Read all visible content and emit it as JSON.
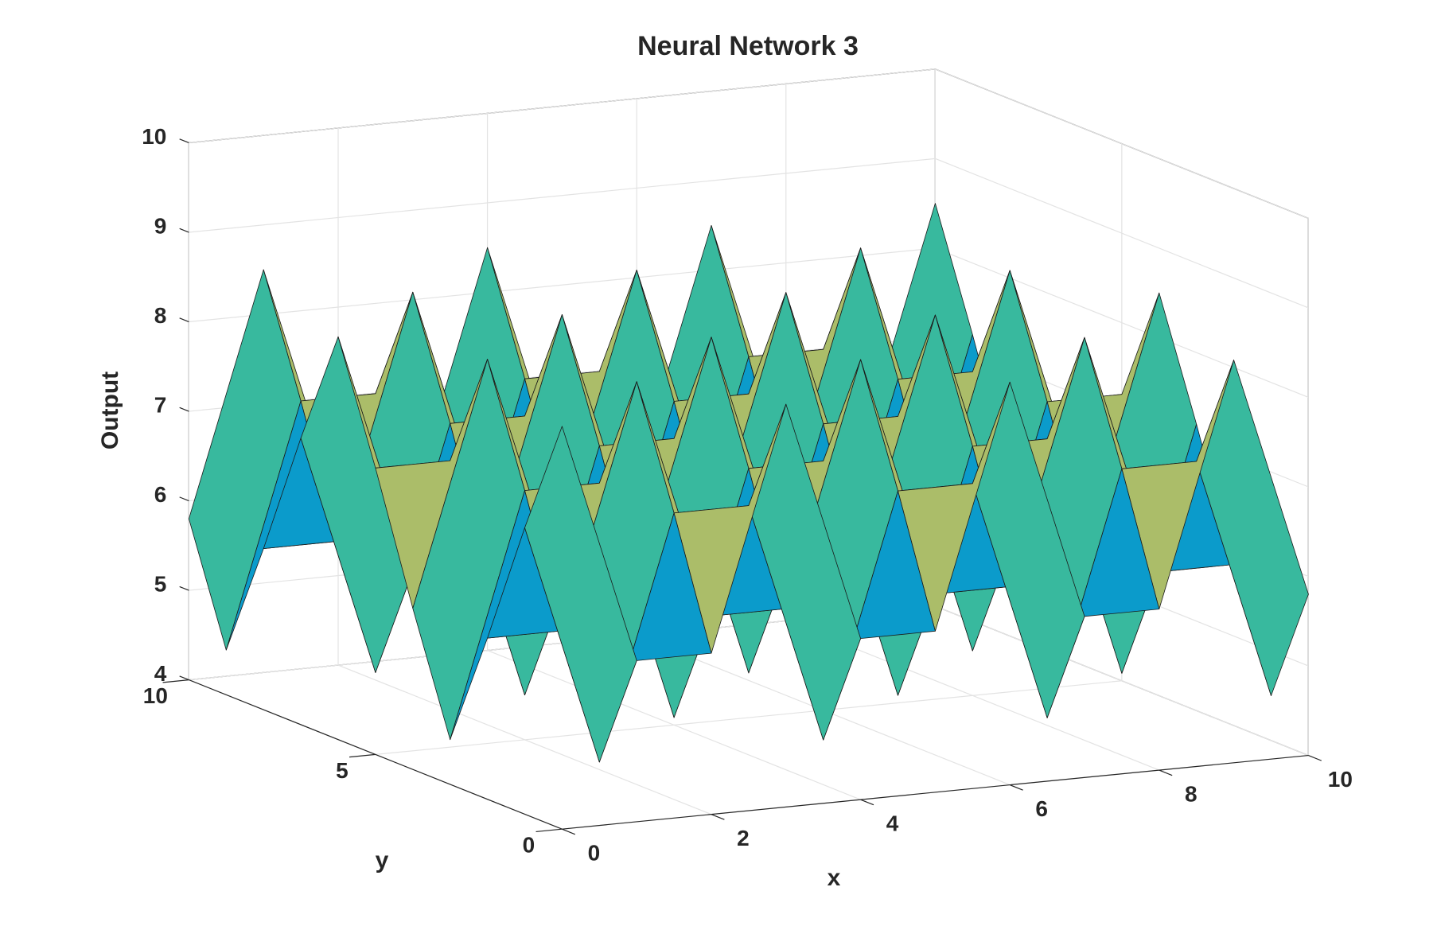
{
  "chart_data": {
    "type": "surface",
    "title": "Neural Network 3",
    "x_label": "x",
    "y_label": "y",
    "z_label": "Output",
    "x": [
      0,
      1,
      2,
      3,
      4,
      5,
      6,
      7,
      8,
      9,
      10
    ],
    "y": [
      0,
      1,
      2,
      3,
      4,
      5,
      6,
      7,
      8,
      9,
      10
    ],
    "z": [
      [
        8.5,
        5.8,
        5.8,
        8.5,
        5.8,
        5.8,
        8.5,
        5.8,
        5.8,
        8.5,
        5.8
      ],
      [
        7.2,
        4.5,
        7.2,
        7.2,
        4.5,
        7.2,
        7.2,
        4.5,
        7.2,
        7.2,
        4.5
      ],
      [
        5.8,
        5.8,
        8.5,
        5.8,
        5.8,
        8.5,
        5.8,
        5.8,
        8.5,
        5.8,
        5.8
      ],
      [
        4.5,
        7.2,
        7.2,
        4.5,
        7.2,
        7.2,
        4.5,
        7.2,
        7.2,
        4.5,
        7.2
      ],
      [
        5.8,
        8.5,
        5.8,
        5.8,
        8.5,
        5.8,
        5.8,
        8.5,
        5.8,
        5.8,
        8.5
      ],
      [
        7.2,
        7.2,
        4.5,
        7.2,
        7.2,
        4.5,
        7.2,
        7.2,
        4.5,
        7.2,
        7.2
      ],
      [
        8.5,
        5.8,
        5.8,
        8.5,
        5.8,
        5.8,
        8.5,
        5.8,
        5.8,
        8.5,
        5.8
      ],
      [
        7.2,
        4.5,
        7.2,
        7.2,
        4.5,
        7.2,
        7.2,
        4.5,
        7.2,
        7.2,
        4.5
      ],
      [
        5.8,
        5.8,
        8.5,
        5.8,
        5.8,
        8.5,
        5.8,
        5.8,
        8.5,
        5.8,
        5.8
      ],
      [
        4.5,
        7.2,
        7.2,
        4.5,
        7.2,
        7.2,
        4.5,
        7.2,
        7.2,
        4.5,
        7.2
      ],
      [
        5.8,
        8.5,
        5.8,
        5.8,
        8.5,
        5.8,
        5.8,
        8.5,
        5.8,
        5.8,
        8.5
      ]
    ],
    "xlim": [
      0,
      10
    ],
    "xticks": [
      0,
      2,
      4,
      6,
      8,
      10
    ],
    "ylim": [
      0,
      10
    ],
    "yticks": [
      0,
      5,
      10
    ],
    "zlim": [
      4,
      10
    ],
    "zticks": [
      4,
      5,
      6,
      7,
      8,
      9,
      10
    ],
    "colormap": "parula",
    "grid": true
  }
}
